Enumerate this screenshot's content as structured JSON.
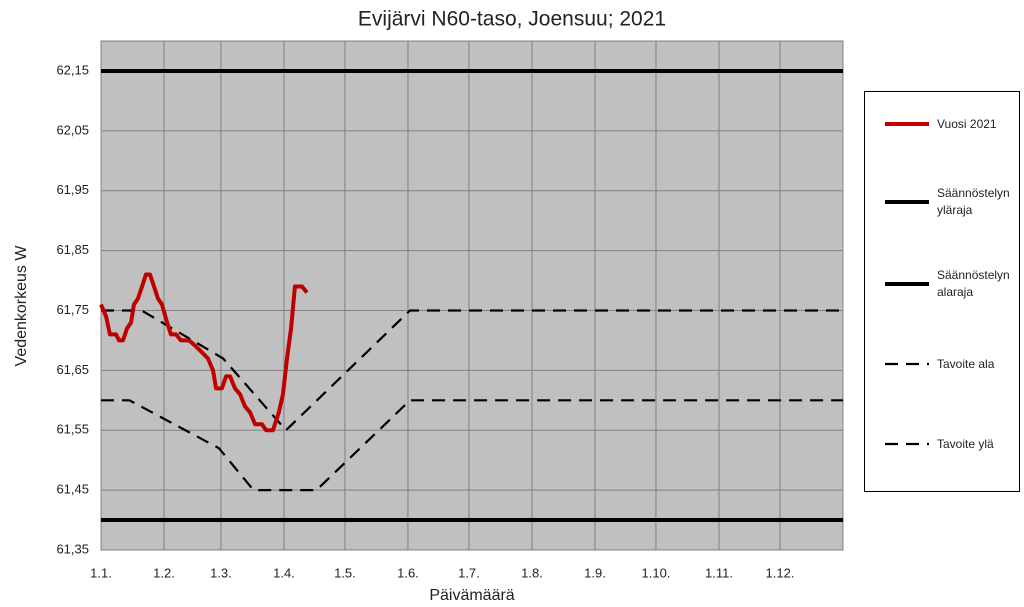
{
  "chart_data": {
    "type": "line",
    "title": "Evijärvi N60-taso, Joensuu; 2021",
    "xlabel": "Päivämäärä",
    "ylabel": "Vedenkorkeus W",
    "xlim": [
      0,
      365
    ],
    "xticks": [
      {
        "value": 0,
        "label": "1.1."
      },
      {
        "value": 31,
        "label": "1.2."
      },
      {
        "value": 59,
        "label": "1.3."
      },
      {
        "value": 90,
        "label": "1.4."
      },
      {
        "value": 120,
        "label": "1.5."
      },
      {
        "value": 151,
        "label": "1.6."
      },
      {
        "value": 181,
        "label": "1.7."
      },
      {
        "value": 212,
        "label": "1.8."
      },
      {
        "value": 243,
        "label": "1.9."
      },
      {
        "value": 273,
        "label": "1.10."
      },
      {
        "value": 304,
        "label": "1.11."
      },
      {
        "value": 334,
        "label": "1.12."
      }
    ],
    "ylim": [
      61.35,
      62.2
    ],
    "yticks": [
      {
        "value": 61.35,
        "label": "61,35"
      },
      {
        "value": 61.45,
        "label": "61,45"
      },
      {
        "value": 61.55,
        "label": "61,55"
      },
      {
        "value": 61.65,
        "label": "61,65"
      },
      {
        "value": 61.75,
        "label": "61,75"
      },
      {
        "value": 61.85,
        "label": "61,85"
      },
      {
        "value": 61.95,
        "label": "61,95"
      },
      {
        "value": 62.05,
        "label": "62,05"
      },
      {
        "value": 62.15,
        "label": "62,15"
      }
    ],
    "grid": true,
    "legend": "right",
    "series": [
      {
        "name": "Vuosi 2021",
        "color": "#c00000",
        "dashed": false,
        "x": [
          0,
          2.5,
          4.4,
          7.4,
          8.9,
          10.8,
          12.8,
          14.8,
          16.2,
          18.2,
          20.2,
          22.1,
          24.1,
          26.1,
          28,
          30,
          32.5,
          34.4,
          36.9,
          39.3,
          43.3,
          46.7,
          49.7,
          52.6,
          55.1,
          56.6,
          59.5,
          61.5,
          63.5,
          65.9,
          68.4,
          70.8,
          73.3,
          75.8,
          79.2,
          81.2,
          84.6,
          87.5,
          89.5,
          91.5,
          93.5,
          95.4,
          98.9,
          101.3
        ],
        "values": [
          61.76,
          61.74,
          61.71,
          61.71,
          61.7,
          61.7,
          61.72,
          61.73,
          61.76,
          61.77,
          61.79,
          61.81,
          61.81,
          61.79,
          61.77,
          61.76,
          61.73,
          61.71,
          61.71,
          61.7,
          61.7,
          61.69,
          61.68,
          61.67,
          61.65,
          61.62,
          61.62,
          61.64,
          61.64,
          61.62,
          61.61,
          61.59,
          61.58,
          61.56,
          61.56,
          61.55,
          61.55,
          61.58,
          61.61,
          61.67,
          61.72,
          61.79,
          61.79,
          61.78
        ]
      },
      {
        "name": "Säännöstelyn yläraja",
        "color": "#000000",
        "dashed": false,
        "x": [
          0,
          365
        ],
        "values": [
          62.15,
          62.15
        ]
      },
      {
        "name": "Säännöstelyn alaraja",
        "color": "#000000",
        "dashed": false,
        "x": [
          0,
          365
        ],
        "values": [
          61.4,
          61.4
        ]
      },
      {
        "name": "Tavoite ala",
        "color": "#000000",
        "dashed": true,
        "x": [
          0,
          14,
          58,
          75,
          106,
          152,
          365
        ],
        "values": [
          61.6,
          61.6,
          61.52,
          61.45,
          61.45,
          61.6,
          61.6
        ]
      },
      {
        "name": "Tavoite ylä",
        "color": "#000000",
        "dashed": true,
        "x": [
          0,
          20,
          60,
          91,
          152,
          365
        ],
        "values": [
          61.75,
          61.75,
          61.67,
          61.55,
          61.75,
          61.75
        ]
      }
    ]
  }
}
